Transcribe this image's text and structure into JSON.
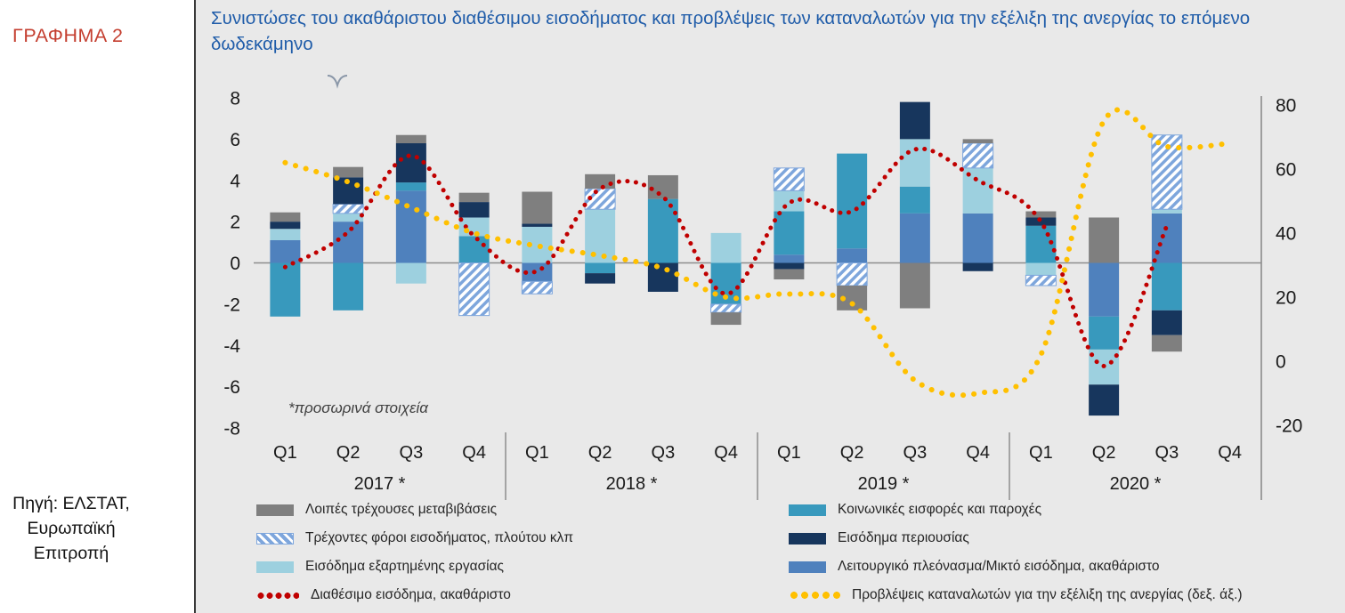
{
  "sidebar": {
    "chart_label": "ΓΡΑΦΗΜΑ 2",
    "source_lines": [
      "Πηγή: ΕΛΣΤΑΤ,",
      "Ευρωπαϊκή",
      "Επιτροπή"
    ]
  },
  "header": {
    "title": "Συνιστώσες του ακαθάριστου διαθέσιμου εισοδήματος και προβλέψεις των καταναλωτών για την εξέλιξη της ανεργίας το επόμενο δωδεκάμηνο"
  },
  "annotation": "*προσωρινά στοιχεία",
  "colors": {
    "background_panel": "#E9E9E9",
    "title_blue": "#1F5CA9",
    "label_red": "#C43E2F",
    "other_transfers_gray": "#7F7F7F",
    "taxes_hatch_blue": "#7EA6DC",
    "employment_light_blue": "#9DD0DF",
    "social_teal": "#3899BD",
    "property_navy": "#17365D",
    "surplus_medium_blue": "#4F81BD",
    "disposable_income_red": "#C00000",
    "unemployment_yellow": "#FFC000",
    "axis_gray": "#8C8C8C"
  },
  "chart_data": {
    "type": "bar",
    "subtype": "stacked-bars-with-dotted-lines",
    "title": "Συνιστώσες του ακαθάριστου διαθέσιμου εισοδήματος και προβλέψεις των καταναλωτών για την εξέλιξη της ανεργίας το επόμενο δωδεκάμηνο",
    "grid": false,
    "legend_position": "bottom",
    "quarters": [
      "Q1",
      "Q2",
      "Q3",
      "Q4",
      "Q1",
      "Q2",
      "Q3",
      "Q4",
      "Q1",
      "Q2",
      "Q3",
      "Q4",
      "Q1",
      "Q2",
      "Q3",
      "Q4"
    ],
    "year_groups": [
      "2017 *",
      "2018 *",
      "2019 *",
      "2020 *"
    ],
    "left_axis": {
      "min": -8,
      "max": 8,
      "ticks": [
        8,
        6,
        4,
        2,
        0,
        -2,
        -4,
        -6,
        -8
      ]
    },
    "right_axis": {
      "min": -20,
      "max": 80,
      "ticks": [
        80,
        60,
        40,
        20,
        0,
        -20
      ]
    },
    "bar_series": [
      {
        "id": "surplus",
        "name": "Λειτουργικό πλεόνασμα/Μικτό εισόδημα, ακαθάριστο",
        "color": "#4F81BD",
        "values": [
          1.1,
          2.0,
          3.5,
          0,
          -0.9,
          0,
          0,
          0,
          0.4,
          0.7,
          2.4,
          2.4,
          0,
          -2.6,
          2.4,
          null
        ]
      },
      {
        "id": "social",
        "name": "Κοινωνικές εισφορές και παροχές",
        "color": "#3899BD",
        "values": [
          -2.6,
          -2.3,
          0.4,
          1.3,
          0,
          -0.5,
          3.1,
          -2.0,
          2.1,
          4.6,
          1.3,
          0,
          1.8,
          -1.6,
          -2.3,
          null
        ]
      },
      {
        "id": "employment",
        "name": "Εισόδημα εξαρτημένης εργασίας",
        "color": "#9DD0DF",
        "values": [
          0.55,
          0.4,
          -1.0,
          0.9,
          1.75,
          2.6,
          0,
          1.45,
          1.0,
          0,
          2.3,
          2.2,
          -0.6,
          -1.7,
          0.2,
          null
        ]
      },
      {
        "id": "taxes",
        "name": "Τρέχοντες φόροι εισοδήματος, πλούτου κλπ",
        "color": "hatch",
        "values": [
          0,
          0.45,
          0,
          -2.55,
          -0.6,
          1.0,
          0,
          -0.4,
          1.1,
          -1.1,
          0,
          1.2,
          -0.5,
          0,
          3.6,
          null
        ]
      },
      {
        "id": "property",
        "name": "Εισόδημα περιουσίας",
        "color": "#17365D",
        "values": [
          0.35,
          1.3,
          1.9,
          0.75,
          0.15,
          -0.5,
          -1.4,
          0,
          -0.3,
          0,
          1.8,
          -0.4,
          0.4,
          -1.5,
          -1.2,
          null
        ]
      },
      {
        "id": "other_transfers",
        "name": "Λοιπές τρέχουσες μεταβιβάσεις",
        "color": "#7F7F7F",
        "values": [
          0.45,
          0.5,
          0.4,
          0.45,
          1.55,
          0.7,
          1.15,
          -0.6,
          -0.5,
          -1.2,
          -2.2,
          0.2,
          0.3,
          2.2,
          -0.8,
          null
        ]
      }
    ],
    "line_series": [
      {
        "id": "disposable_income",
        "name": "Διαθέσιμο εισόδημα, ακαθάριστο",
        "color": "#C00000",
        "axis": "left",
        "values": [
          -0.2,
          1.5,
          5.2,
          1.3,
          -0.4,
          3.6,
          3.2,
          -1.5,
          2.9,
          2.5,
          5.5,
          4.0,
          2.0,
          -5.0,
          1.8,
          null
        ]
      },
      {
        "id": "unemployment_expectations",
        "name": "Προβλέψεις καταναλωτών για την εξέλιξη της ανεργίας (δεξ. άξ.)",
        "color": "#FFC000",
        "axis": "right",
        "values": [
          62,
          56,
          48,
          40,
          36,
          33,
          29,
          20,
          21,
          18,
          -6,
          -10,
          2,
          75,
          67,
          68
        ]
      }
    ]
  },
  "legend": {
    "items": [
      {
        "label": "Λοιπές τρέχουσες μεταβιβάσεις"
      },
      {
        "label": "Τρέχοντες φόροι εισοδήματος, πλούτου κλπ"
      },
      {
        "label": "Εισόδημα εξαρτημένης εργασίας"
      },
      {
        "label": "Διαθέσιμο εισόδημα, ακαθάριστο"
      },
      {
        "label": "Κοινωνικές εισφορές και παροχές"
      },
      {
        "label": "Εισόδημα περιουσίας"
      },
      {
        "label": "Λειτουργικό πλεόνασμα/Μικτό εισόδημα, ακαθάριστο"
      },
      {
        "label": "Προβλέψεις καταναλωτών για την εξέλιξη της ανεργίας (δεξ. άξ.)"
      }
    ]
  }
}
